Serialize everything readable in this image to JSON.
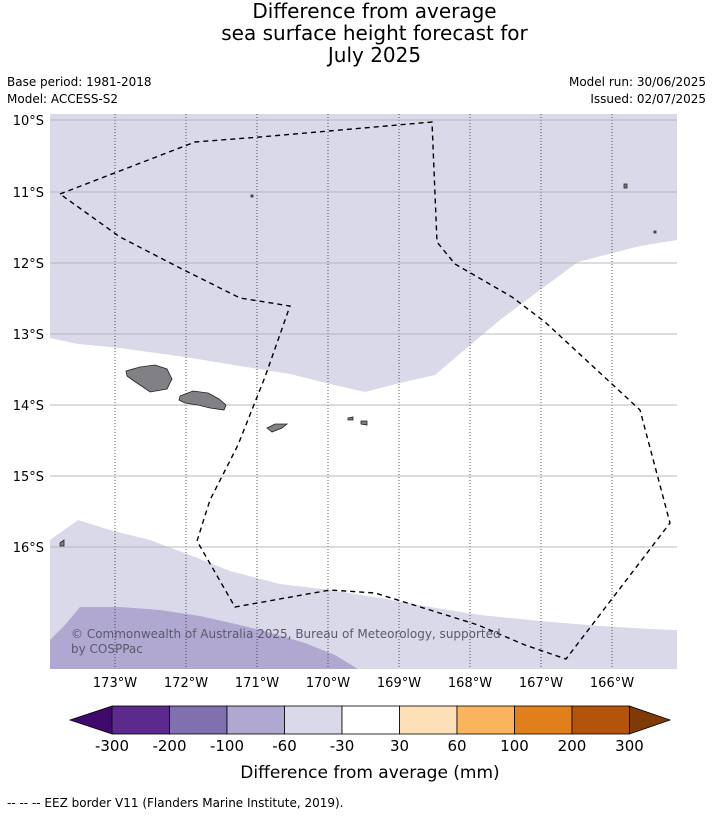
{
  "title": {
    "line1": "Difference from average",
    "line2": "sea surface height forecast for",
    "line3": "July 2025"
  },
  "meta": {
    "base_period": "Base period: 1981-2018",
    "model": "Model: ACCESS-S2",
    "model_run": "Model run: 30/06/2025",
    "issued": "Issued: 02/07/2025"
  },
  "map": {
    "lat_labels": [
      "10°S",
      "11°S",
      "12°S",
      "13°S",
      "14°S",
      "15°S",
      "16°S"
    ],
    "lon_labels": [
      "173°W",
      "172°W",
      "171°W",
      "170°W",
      "169°W",
      "168°W",
      "167°W",
      "166°W"
    ],
    "copyright_line1": "© Commonwealth of Australia 2025, Bureau of Meteorology, supported",
    "copyright_line2": "by COSPPac",
    "land_color": "#808085",
    "eez_line_style": "dashed"
  },
  "colorbar": {
    "label": "Difference from average (mm)",
    "ticks": [
      "-300",
      "-200",
      "-100",
      "-60",
      "-30",
      "30",
      "60",
      "100",
      "200",
      "300"
    ],
    "colors": [
      "#3f0a6c",
      "#5b2a8c",
      "#8070b0",
      "#b0a8d0",
      "#d9d9ea",
      "#ffffff",
      "#fde0b8",
      "#fbb45e",
      "#e1801a",
      "#b4540a",
      "#7f3a08"
    ]
  },
  "footnote": "--  --  -- EEZ border V11 (Flanders Marine Institute, 2019)."
}
